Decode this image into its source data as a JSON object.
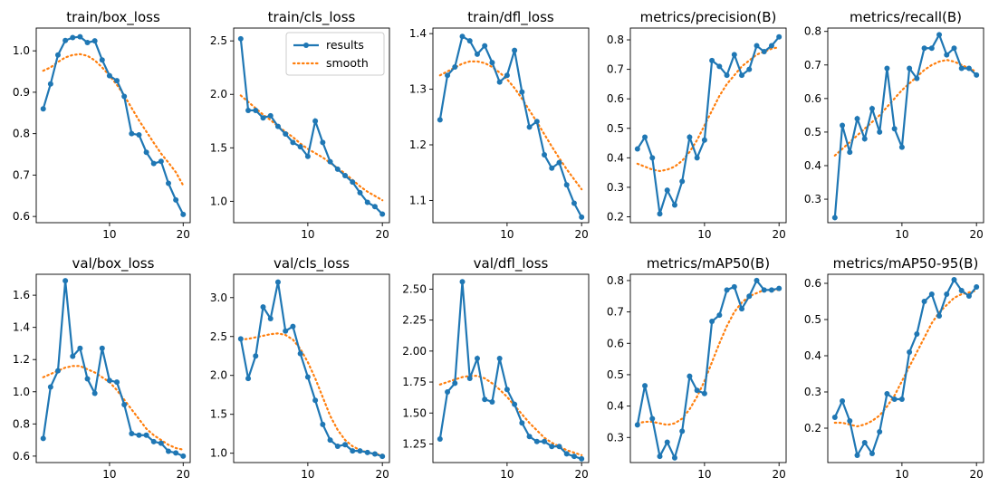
{
  "legend": {
    "results": "results",
    "smooth": "smooth"
  },
  "colors": {
    "results": "#1f77b4",
    "smooth": "#ff7f0e",
    "axes": "#000000",
    "background": "#ffffff"
  },
  "chart_data": [
    {
      "type": "line",
      "title": "train/box_loss",
      "x": [
        1,
        2,
        3,
        4,
        5,
        6,
        7,
        8,
        9,
        10,
        11,
        12,
        13,
        14,
        15,
        16,
        17,
        18,
        19,
        20
      ],
      "series": [
        {
          "name": "results",
          "values": [
            0.86,
            0.92,
            0.99,
            1.025,
            1.032,
            1.034,
            1.02,
            1.024,
            0.978,
            0.94,
            0.928,
            0.89,
            0.8,
            0.797,
            0.755,
            0.728,
            0.733,
            0.68,
            0.64,
            0.605
          ]
        },
        {
          "name": "smooth",
          "values": [
            0.952,
            0.96,
            0.973,
            0.984,
            0.99,
            0.992,
            0.988,
            0.977,
            0.96,
            0.94,
            0.918,
            0.892,
            0.862,
            0.832,
            0.805,
            0.778,
            0.752,
            0.73,
            0.707,
            0.675
          ]
        }
      ],
      "ylim": [
        0.585,
        1.055
      ],
      "xticks": [
        10,
        20
      ],
      "yticks": [
        0.6,
        0.7,
        0.8,
        0.9,
        1.0
      ]
    },
    {
      "type": "line",
      "title": "train/cls_loss",
      "x": [
        1,
        2,
        3,
        4,
        5,
        6,
        7,
        8,
        9,
        10,
        11,
        12,
        13,
        14,
        15,
        16,
        17,
        18,
        19,
        20
      ],
      "series": [
        {
          "name": "results",
          "values": [
            2.52,
            1.85,
            1.85,
            1.78,
            1.8,
            1.7,
            1.63,
            1.55,
            1.51,
            1.42,
            1.75,
            1.55,
            1.37,
            1.3,
            1.24,
            1.18,
            1.08,
            0.99,
            0.95,
            0.88
          ]
        },
        {
          "name": "smooth",
          "values": [
            1.99,
            1.93,
            1.87,
            1.81,
            1.76,
            1.7,
            1.65,
            1.6,
            1.54,
            1.49,
            1.45,
            1.41,
            1.36,
            1.31,
            1.26,
            1.2,
            1.14,
            1.09,
            1.05,
            1.01
          ]
        }
      ],
      "ylim": [
        0.8,
        2.62
      ],
      "xticks": [
        10,
        20
      ],
      "yticks": [
        1.0,
        1.5,
        2.0,
        2.5
      ],
      "legend": "top-right"
    },
    {
      "type": "line",
      "title": "train/dfl_loss",
      "x": [
        1,
        2,
        3,
        4,
        5,
        6,
        7,
        8,
        9,
        10,
        11,
        12,
        13,
        14,
        15,
        16,
        17,
        18,
        19,
        20
      ],
      "series": [
        {
          "name": "results",
          "values": [
            1.245,
            1.325,
            1.34,
            1.395,
            1.387,
            1.363,
            1.378,
            1.348,
            1.313,
            1.325,
            1.37,
            1.295,
            1.232,
            1.242,
            1.182,
            1.158,
            1.168,
            1.128,
            1.095,
            1.07
          ]
        },
        {
          "name": "smooth",
          "values": [
            1.325,
            1.332,
            1.339,
            1.346,
            1.35,
            1.35,
            1.347,
            1.34,
            1.33,
            1.318,
            1.302,
            1.283,
            1.262,
            1.241,
            1.219,
            1.197,
            1.176,
            1.156,
            1.138,
            1.12
          ]
        }
      ],
      "ylim": [
        1.06,
        1.41
      ],
      "xticks": [
        10,
        20
      ],
      "yticks": [
        1.1,
        1.2,
        1.3,
        1.4
      ]
    },
    {
      "type": "line",
      "title": "metrics/precision(B)",
      "x": [
        1,
        2,
        3,
        4,
        5,
        6,
        7,
        8,
        9,
        10,
        11,
        12,
        13,
        14,
        15,
        16,
        17,
        18,
        19,
        20
      ],
      "series": [
        {
          "name": "results",
          "values": [
            0.43,
            0.47,
            0.4,
            0.21,
            0.29,
            0.24,
            0.32,
            0.47,
            0.4,
            0.46,
            0.73,
            0.71,
            0.68,
            0.75,
            0.68,
            0.7,
            0.78,
            0.76,
            0.78,
            0.81
          ]
        },
        {
          "name": "smooth",
          "values": [
            0.38,
            0.37,
            0.36,
            0.355,
            0.36,
            0.37,
            0.39,
            0.42,
            0.46,
            0.51,
            0.56,
            0.61,
            0.65,
            0.68,
            0.71,
            0.73,
            0.75,
            0.76,
            0.77,
            0.775
          ]
        }
      ],
      "ylim": [
        0.18,
        0.84
      ],
      "xticks": [
        10,
        20
      ],
      "yticks": [
        0.2,
        0.3,
        0.4,
        0.5,
        0.6,
        0.7,
        0.8
      ]
    },
    {
      "type": "line",
      "title": "metrics/recall(B)",
      "x": [
        1,
        2,
        3,
        4,
        5,
        6,
        7,
        8,
        9,
        10,
        11,
        12,
        13,
        14,
        15,
        16,
        17,
        18,
        19,
        20
      ],
      "series": [
        {
          "name": "results",
          "values": [
            0.245,
            0.52,
            0.44,
            0.54,
            0.48,
            0.57,
            0.5,
            0.69,
            0.51,
            0.455,
            0.69,
            0.66,
            0.75,
            0.75,
            0.79,
            0.73,
            0.75,
            0.69,
            0.69,
            0.67
          ]
        },
        {
          "name": "smooth",
          "values": [
            0.43,
            0.45,
            0.47,
            0.49,
            0.51,
            0.53,
            0.55,
            0.575,
            0.6,
            0.625,
            0.645,
            0.665,
            0.685,
            0.7,
            0.71,
            0.715,
            0.71,
            0.7,
            0.69,
            0.68
          ]
        }
      ],
      "ylim": [
        0.23,
        0.81
      ],
      "xticks": [
        10,
        20
      ],
      "yticks": [
        0.3,
        0.4,
        0.5,
        0.6,
        0.7,
        0.8
      ]
    },
    {
      "type": "line",
      "title": "val/box_loss",
      "x": [
        1,
        2,
        3,
        4,
        5,
        6,
        7,
        8,
        9,
        10,
        11,
        12,
        13,
        14,
        15,
        16,
        17,
        18,
        19,
        20
      ],
      "series": [
        {
          "name": "results",
          "values": [
            0.71,
            1.03,
            1.13,
            1.69,
            1.22,
            1.27,
            1.08,
            0.99,
            1.27,
            1.07,
            1.06,
            0.92,
            0.74,
            0.73,
            0.73,
            0.69,
            0.68,
            0.63,
            0.62,
            0.6
          ]
        },
        {
          "name": "smooth",
          "values": [
            1.09,
            1.11,
            1.13,
            1.15,
            1.16,
            1.16,
            1.14,
            1.12,
            1.09,
            1.06,
            1.01,
            0.95,
            0.89,
            0.83,
            0.77,
            0.73,
            0.7,
            0.67,
            0.65,
            0.64
          ]
        }
      ],
      "ylim": [
        0.56,
        1.73
      ],
      "xticks": [
        10,
        20
      ],
      "yticks": [
        0.6,
        0.8,
        1.0,
        1.2,
        1.4,
        1.6
      ]
    },
    {
      "type": "line",
      "title": "val/cls_loss",
      "x": [
        1,
        2,
        3,
        4,
        5,
        6,
        7,
        8,
        9,
        10,
        11,
        12,
        13,
        14,
        15,
        16,
        17,
        18,
        19,
        20
      ],
      "series": [
        {
          "name": "results",
          "values": [
            2.47,
            1.96,
            2.25,
            2.88,
            2.73,
            3.2,
            2.57,
            2.63,
            2.28,
            1.98,
            1.68,
            1.37,
            1.17,
            1.09,
            1.11,
            1.03,
            1.03,
            1.01,
            0.99,
            0.96
          ]
        },
        {
          "name": "smooth",
          "values": [
            2.46,
            2.47,
            2.49,
            2.51,
            2.53,
            2.54,
            2.52,
            2.46,
            2.34,
            2.17,
            1.96,
            1.72,
            1.48,
            1.3,
            1.17,
            1.09,
            1.04,
            1.01,
            0.99,
            0.98
          ]
        }
      ],
      "ylim": [
        0.88,
        3.3
      ],
      "xticks": [
        10,
        20
      ],
      "yticks": [
        1.0,
        1.5,
        2.0,
        2.5,
        3.0
      ]
    },
    {
      "type": "line",
      "title": "val/dfl_loss",
      "x": [
        1,
        2,
        3,
        4,
        5,
        6,
        7,
        8,
        9,
        10,
        11,
        12,
        13,
        14,
        15,
        16,
        17,
        18,
        19,
        20
      ],
      "series": [
        {
          "name": "results",
          "values": [
            1.29,
            1.67,
            1.74,
            2.56,
            1.78,
            1.94,
            1.61,
            1.59,
            1.94,
            1.69,
            1.57,
            1.42,
            1.31,
            1.27,
            1.27,
            1.23,
            1.23,
            1.17,
            1.15,
            1.13
          ]
        },
        {
          "name": "smooth",
          "values": [
            1.73,
            1.75,
            1.77,
            1.79,
            1.8,
            1.8,
            1.78,
            1.74,
            1.69,
            1.63,
            1.56,
            1.49,
            1.42,
            1.36,
            1.3,
            1.26,
            1.23,
            1.2,
            1.18,
            1.16
          ]
        }
      ],
      "ylim": [
        1.1,
        2.62
      ],
      "xticks": [
        10,
        20
      ],
      "yticks": [
        1.25,
        1.5,
        1.75,
        2.0,
        2.25,
        2.5
      ]
    },
    {
      "type": "line",
      "title": "metrics/mAP50(B)",
      "x": [
        1,
        2,
        3,
        4,
        5,
        6,
        7,
        8,
        9,
        10,
        11,
        12,
        13,
        14,
        15,
        16,
        17,
        18,
        19,
        20
      ],
      "series": [
        {
          "name": "results",
          "values": [
            0.34,
            0.465,
            0.36,
            0.24,
            0.285,
            0.235,
            0.32,
            0.495,
            0.45,
            0.44,
            0.67,
            0.69,
            0.77,
            0.78,
            0.71,
            0.75,
            0.8,
            0.77,
            0.77,
            0.775
          ]
        },
        {
          "name": "smooth",
          "values": [
            0.345,
            0.35,
            0.35,
            0.345,
            0.34,
            0.345,
            0.36,
            0.39,
            0.43,
            0.48,
            0.54,
            0.6,
            0.655,
            0.7,
            0.73,
            0.75,
            0.76,
            0.77,
            0.77,
            0.77
          ]
        }
      ],
      "ylim": [
        0.22,
        0.82
      ],
      "xticks": [
        10,
        20
      ],
      "yticks": [
        0.3,
        0.4,
        0.5,
        0.6,
        0.7,
        0.8
      ]
    },
    {
      "type": "line",
      "title": "metrics/mAP50-95(B)",
      "x": [
        1,
        2,
        3,
        4,
        5,
        6,
        7,
        8,
        9,
        10,
        11,
        12,
        13,
        14,
        15,
        16,
        17,
        18,
        19,
        20
      ],
      "series": [
        {
          "name": "results",
          "values": [
            0.23,
            0.275,
            0.22,
            0.125,
            0.16,
            0.13,
            0.19,
            0.295,
            0.28,
            0.28,
            0.41,
            0.46,
            0.55,
            0.57,
            0.51,
            0.57,
            0.61,
            0.58,
            0.565,
            0.59
          ]
        },
        {
          "name": "smooth",
          "values": [
            0.215,
            0.215,
            0.21,
            0.205,
            0.21,
            0.22,
            0.235,
            0.26,
            0.29,
            0.33,
            0.37,
            0.41,
            0.45,
            0.49,
            0.52,
            0.54,
            0.56,
            0.57,
            0.575,
            0.58
          ]
        }
      ],
      "ylim": [
        0.105,
        0.625
      ],
      "xticks": [
        10,
        20
      ],
      "yticks": [
        0.2,
        0.3,
        0.4,
        0.5,
        0.6
      ]
    }
  ]
}
